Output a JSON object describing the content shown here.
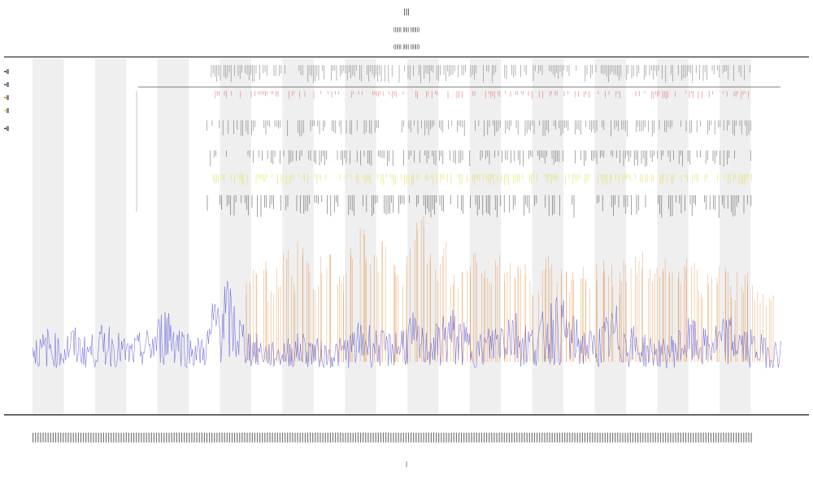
{
  "chart_data": {
    "type": "line",
    "title": "|||",
    "subtitle_lines": [
      "(||||| ||||| ||||||)",
      "(||||| ||||| ||||||)"
    ],
    "xlabel": "|",
    "ylabel": "",
    "x_range": [
      0,
      900
    ],
    "ylim": [
      0,
      100
    ],
    "grid": false,
    "legend_position": "top-left",
    "band_count": 12,
    "series": [
      {
        "name": "",
        "color": "#3f3fd6",
        "values": [
          12,
          10,
          13,
          11,
          9,
          14,
          12,
          10,
          11,
          13,
          15,
          12,
          10,
          9,
          11,
          12,
          14,
          18,
          22,
          16,
          13,
          11,
          10,
          12,
          24,
          30,
          26,
          20,
          15,
          12,
          10,
          9,
          8,
          9,
          10,
          11,
          12,
          10,
          9,
          8,
          9,
          10,
          12,
          14,
          16,
          13,
          12,
          11,
          13,
          15,
          18,
          14,
          12,
          13,
          16,
          20,
          17,
          14,
          12,
          11,
          13,
          15,
          19,
          22,
          18,
          15,
          14,
          16,
          20,
          24,
          21,
          18,
          15,
          13,
          12,
          14,
          17,
          20,
          16,
          14,
          12,
          11,
          10,
          9,
          10,
          12,
          14,
          16,
          13,
          12,
          14,
          15,
          17,
          15,
          13,
          12,
          11,
          10,
          9,
          10
        ]
      },
      {
        "name": "",
        "color": "#e07a1f",
        "values": [
          0,
          0,
          0,
          0,
          0,
          0,
          0,
          0,
          0,
          0,
          0,
          0,
          0,
          0,
          0,
          0,
          0,
          0,
          0,
          0,
          0,
          0,
          0,
          0,
          0,
          0,
          0,
          0,
          40,
          55,
          60,
          35,
          50,
          65,
          45,
          70,
          55,
          40,
          60,
          75,
          50,
          45,
          65,
          80,
          55,
          60,
          70,
          50,
          45,
          65,
          85,
          90,
          60,
          55,
          70,
          50,
          45,
          60,
          65,
          55,
          50,
          60,
          45,
          55,
          65,
          50,
          40,
          55,
          60,
          50,
          45,
          55,
          50,
          40,
          55,
          60,
          50,
          45,
          55,
          60,
          65,
          50,
          55,
          60,
          45,
          50,
          60,
          55,
          40,
          45,
          50,
          55,
          40,
          45,
          50,
          35,
          30,
          25,
          0,
          0
        ]
      }
    ],
    "rows": [
      {
        "name": "",
        "color": "#444444"
      },
      {
        "name": "",
        "color": "#e04040"
      },
      {
        "name": "",
        "color": "#777777"
      },
      {
        "name": "",
        "color": "#d8d820"
      }
    ],
    "colors": {
      "band": "#efefef",
      "axis": "#333333",
      "primary": "#3f3fd6",
      "secondary": "#e07a1f",
      "marker_red": "#e04040",
      "marker_yellow": "#d8d820"
    }
  }
}
